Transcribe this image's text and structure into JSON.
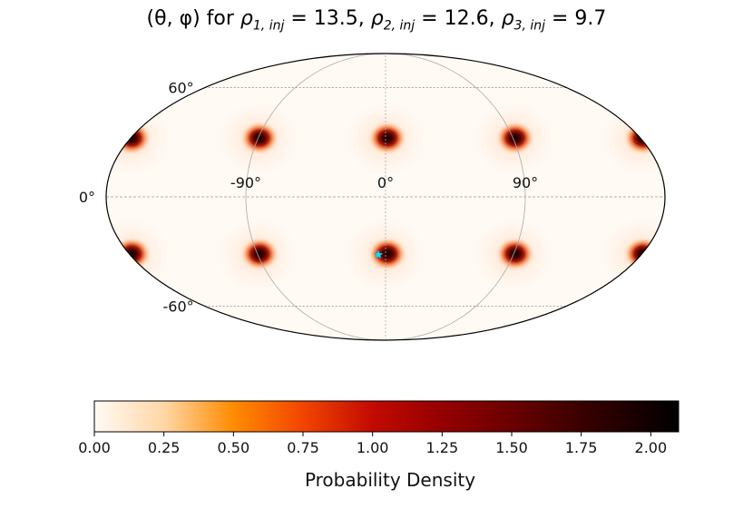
{
  "chart_data": {
    "type": "heatmap",
    "projection": "mollweide",
    "title": {
      "prefix": "(θ, φ) for",
      "terms": [
        {
          "symbol": "ρ",
          "sub": "1, inj",
          "value": "13.5"
        },
        {
          "symbol": "ρ",
          "sub": "2, inj",
          "value": "12.6"
        },
        {
          "symbol": "ρ",
          "sub": "3, inj",
          "value": "9.7"
        }
      ]
    },
    "longitude_tick_labels": [
      "-90°",
      "0°",
      "90°"
    ],
    "latitude_tick_labels": [
      "60°",
      "0°",
      "-60°"
    ],
    "grid": true,
    "blobs": [
      {
        "lon_deg": -90,
        "lat_deg": 30,
        "peak_density": 2.0
      },
      {
        "lon_deg": 0,
        "lat_deg": 30,
        "peak_density": 2.0
      },
      {
        "lon_deg": 90,
        "lat_deg": 30,
        "peak_density": 2.0
      },
      {
        "lon_deg": 180,
        "lat_deg": 30,
        "peak_density": 2.0
      },
      {
        "lon_deg": -90,
        "lat_deg": -30,
        "peak_density": 2.0
      },
      {
        "lon_deg": 0,
        "lat_deg": -30,
        "peak_density": 2.0
      },
      {
        "lon_deg": 90,
        "lat_deg": -30,
        "peak_density": 2.0
      },
      {
        "lon_deg": 180,
        "lat_deg": -30,
        "peak_density": 2.0
      }
    ],
    "injection_marker": {
      "lon_deg": -5,
      "lat_deg": -30,
      "color": "#00e5ff"
    },
    "colorbar": {
      "label": "Probability Density",
      "range": [
        0.0,
        2.1
      ],
      "ticks": [
        "0.00",
        "0.25",
        "0.50",
        "0.75",
        "1.00",
        "1.25",
        "1.50",
        "1.75",
        "2.00"
      ],
      "colormap_stops": [
        {
          "value": 0.0,
          "color": "#fffaf4"
        },
        {
          "value": 0.25,
          "color": "#ffd7a6"
        },
        {
          "value": 0.5,
          "color": "#ff8b00"
        },
        {
          "value": 0.75,
          "color": "#f24500"
        },
        {
          "value": 1.0,
          "color": "#c20a00"
        },
        {
          "value": 1.25,
          "color": "#950000"
        },
        {
          "value": 1.5,
          "color": "#6a0000"
        },
        {
          "value": 1.75,
          "color": "#3a0000"
        },
        {
          "value": 2.1,
          "color": "#000000"
        }
      ]
    }
  }
}
